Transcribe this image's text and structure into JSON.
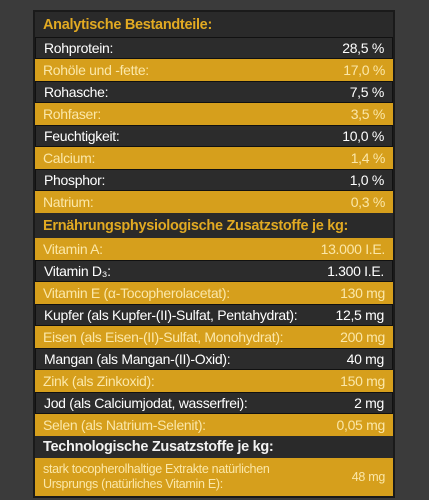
{
  "sections": [
    {
      "title": "Analytische Bestandteile:",
      "rows": [
        {
          "label": "Rohprotein:",
          "value": "28,5 %"
        },
        {
          "label": "Rohöle und -fette:",
          "value": "17,0 %"
        },
        {
          "label": "Rohasche:",
          "value": "7,5 %"
        },
        {
          "label": "Rohfaser:",
          "value": "3,5 %"
        },
        {
          "label": "Feuchtigkeit:",
          "value": "10,0 %"
        },
        {
          "label": "Calcium:",
          "value": "1,4 %"
        },
        {
          "label": "Phosphor:",
          "value": "1,0 %"
        },
        {
          "label": "Natrium:",
          "value": "0,3 %"
        }
      ]
    },
    {
      "title": "Ernährungsphysiologische Zusatzstoffe je kg:",
      "rows": [
        {
          "label": "Vitamin A:",
          "value": "13.000 I.E."
        },
        {
          "label": "Vitamin D₃:",
          "value": "1.300 I.E."
        },
        {
          "label": "Vitamin E (α-Tocopherolacetat):",
          "value": "130 mg"
        },
        {
          "label": "Kupfer (als Kupfer-(II)-Sulfat, Pentahydrat):",
          "value": "12,5 mg"
        },
        {
          "label": "Eisen (als Eisen-(II)-Sulfat, Monohydrat):",
          "value": "200 mg"
        },
        {
          "label": "Mangan (als Mangan-(II)-Oxid):",
          "value": "40 mg"
        },
        {
          "label": "Zink (als Zinkoxid):",
          "value": "150 mg"
        },
        {
          "label": "Jod (als Calciumjodat, wasserfrei):",
          "value": "2 mg"
        },
        {
          "label": "Selen (als Natrium-Selenit):",
          "value": "0,05 mg"
        }
      ]
    },
    {
      "title": "Technologische Zusatzstoffe je kg:",
      "rows": [
        {
          "label": "stark tocopherolhaltige Extrakte natürlichen Ursprungs (natürliches Vitamin E):",
          "value": "48 mg"
        }
      ]
    }
  ]
}
